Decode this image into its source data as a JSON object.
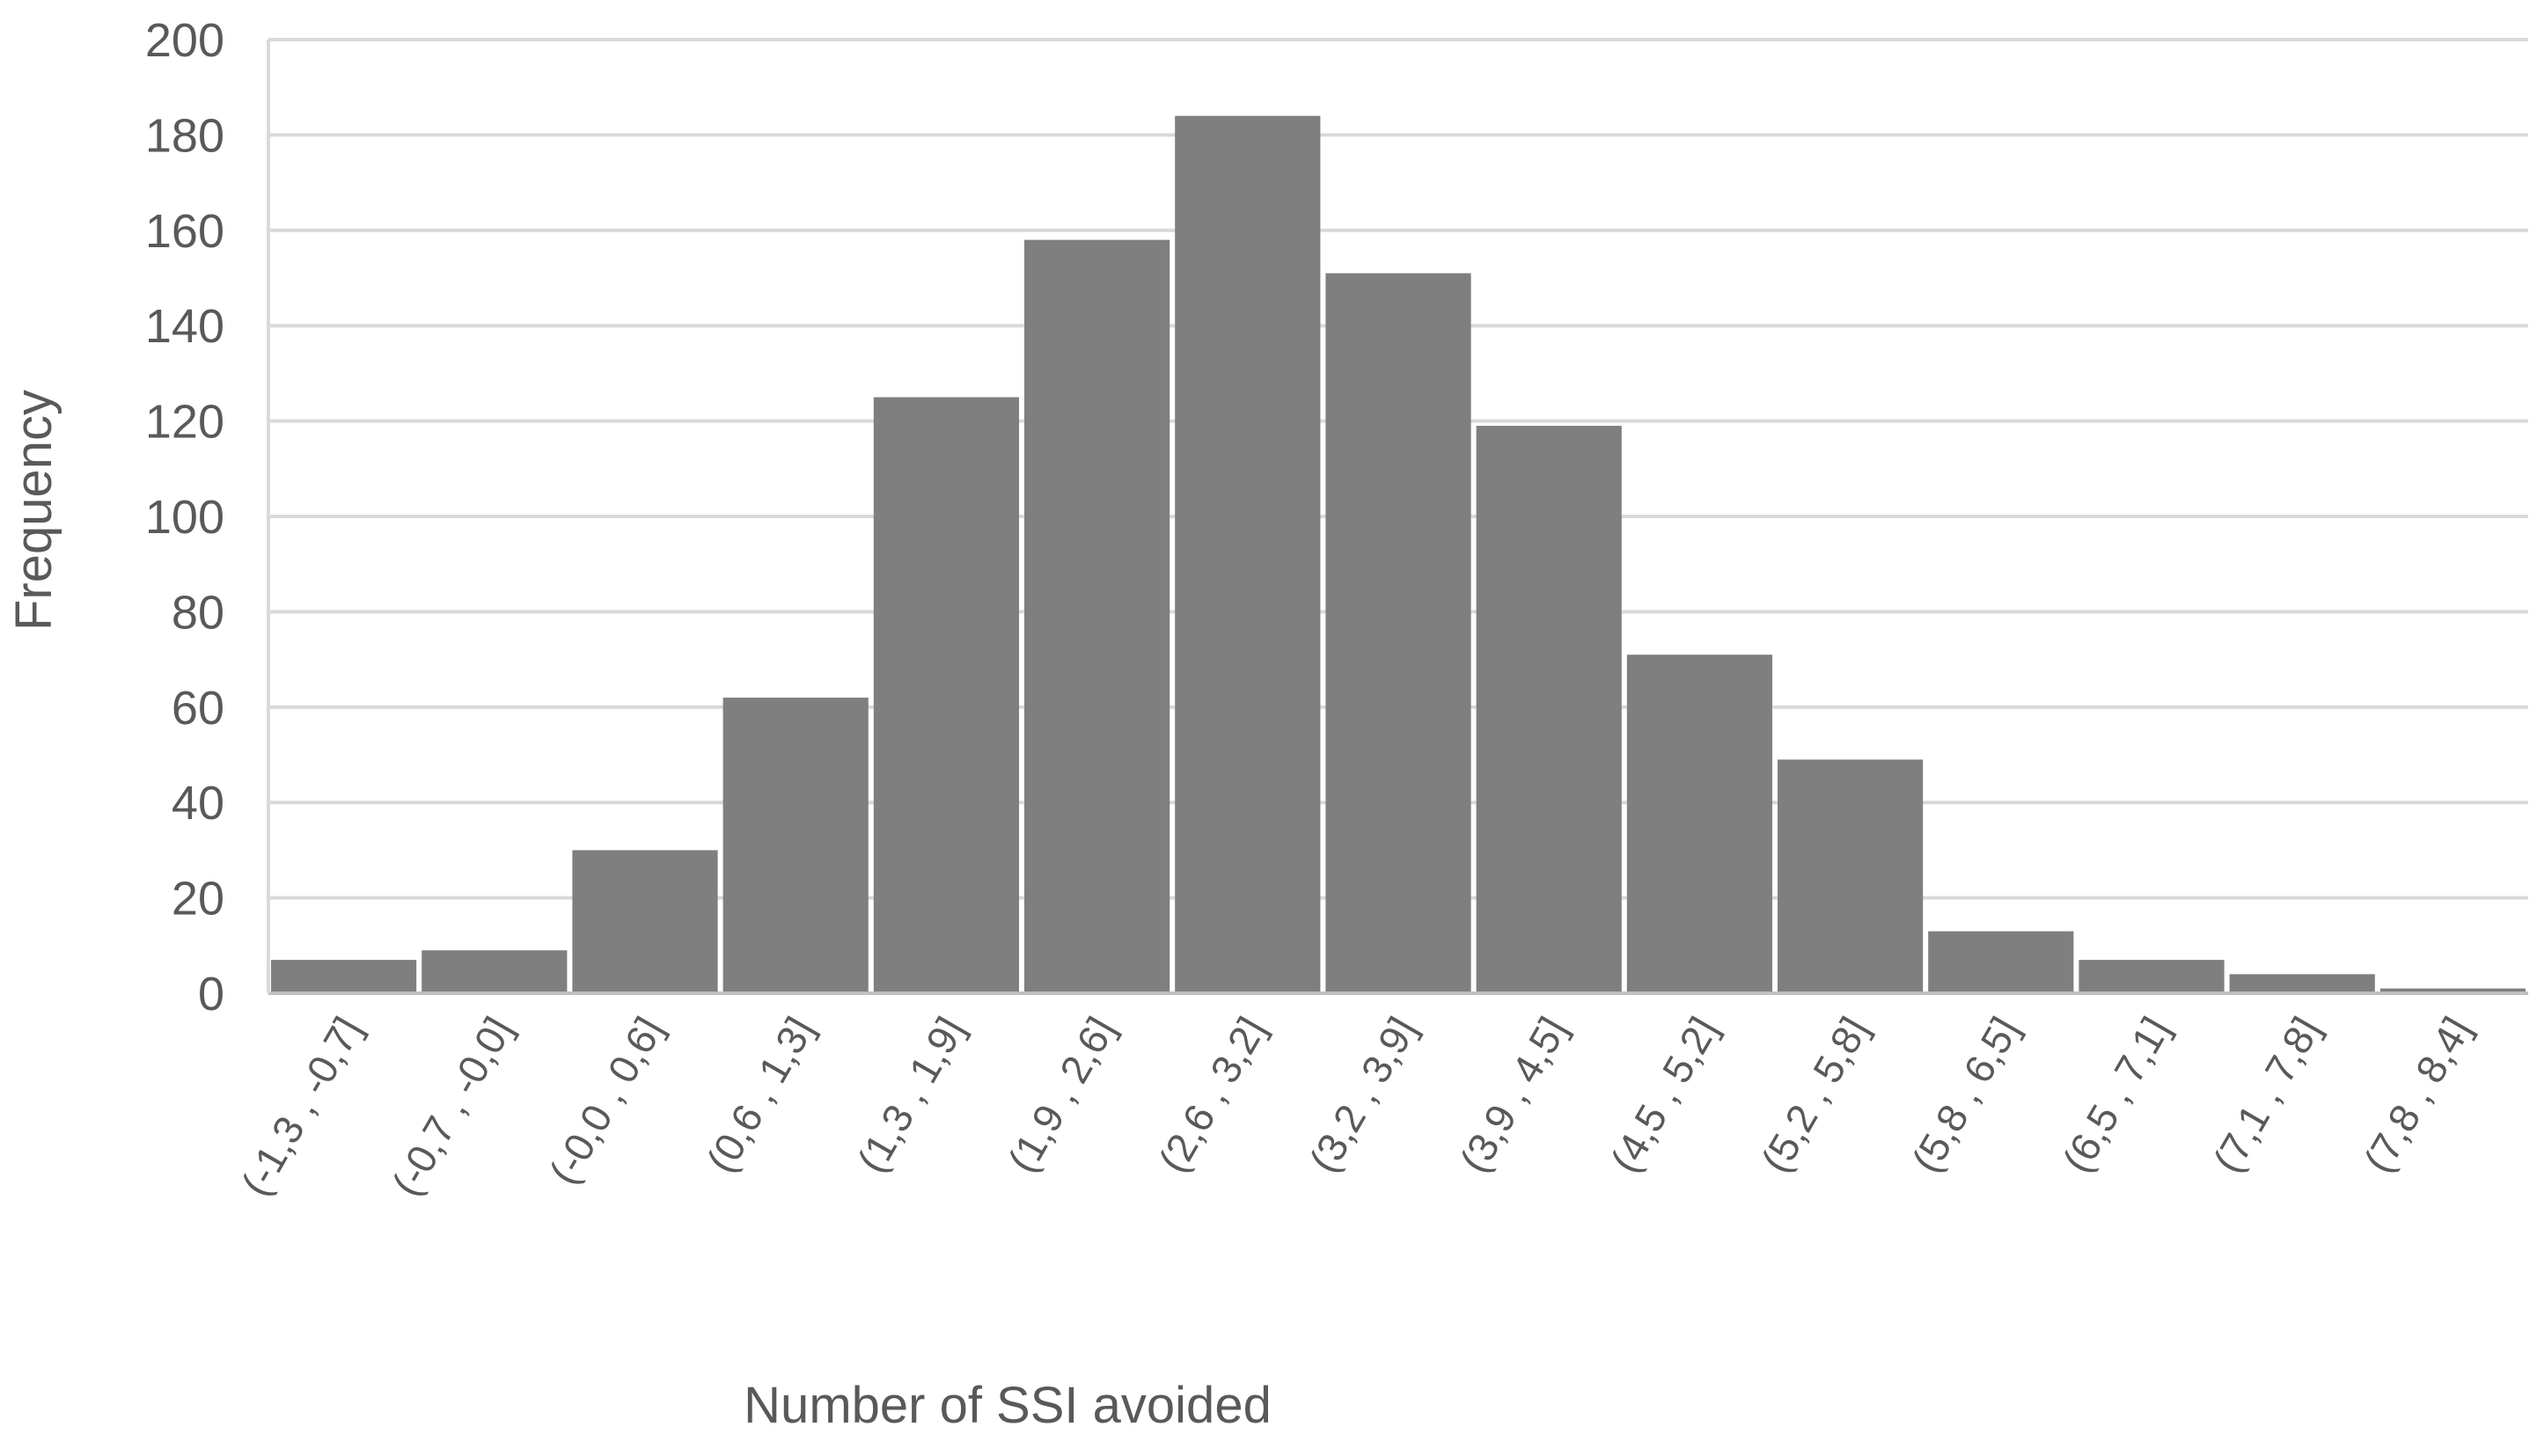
{
  "chart_data": {
    "type": "bar",
    "title": "",
    "xlabel": "Number of SSI avoided",
    "ylabel": "Frequency",
    "ylim": [
      0,
      200
    ],
    "yticks": [
      0,
      20,
      40,
      60,
      80,
      100,
      120,
      140,
      160,
      180,
      200
    ],
    "grid": true,
    "legend": "none",
    "bar_color": "#7f7f7f",
    "categories": [
      "(-1,3 , -0,7]",
      "(-0,7 , -0,0]",
      "(-0,0 , 0,6]",
      "(0,6 , 1,3]",
      "(1,3 , 1,9]",
      "(1,9 , 2,6]",
      "(2,6 , 3,2]",
      "(3,2 , 3,9]",
      "(3,9 , 4,5]",
      "(4,5 , 5,2]",
      "(5,2 , 5,8]",
      "(5,8 , 6,5]",
      "(6,5 , 7,1]",
      "(7,1 , 7,8]",
      "(7,8 , 8,4]"
    ],
    "values": [
      7,
      9,
      30,
      62,
      125,
      158,
      184,
      151,
      119,
      71,
      49,
      13,
      7,
      4,
      1
    ]
  }
}
